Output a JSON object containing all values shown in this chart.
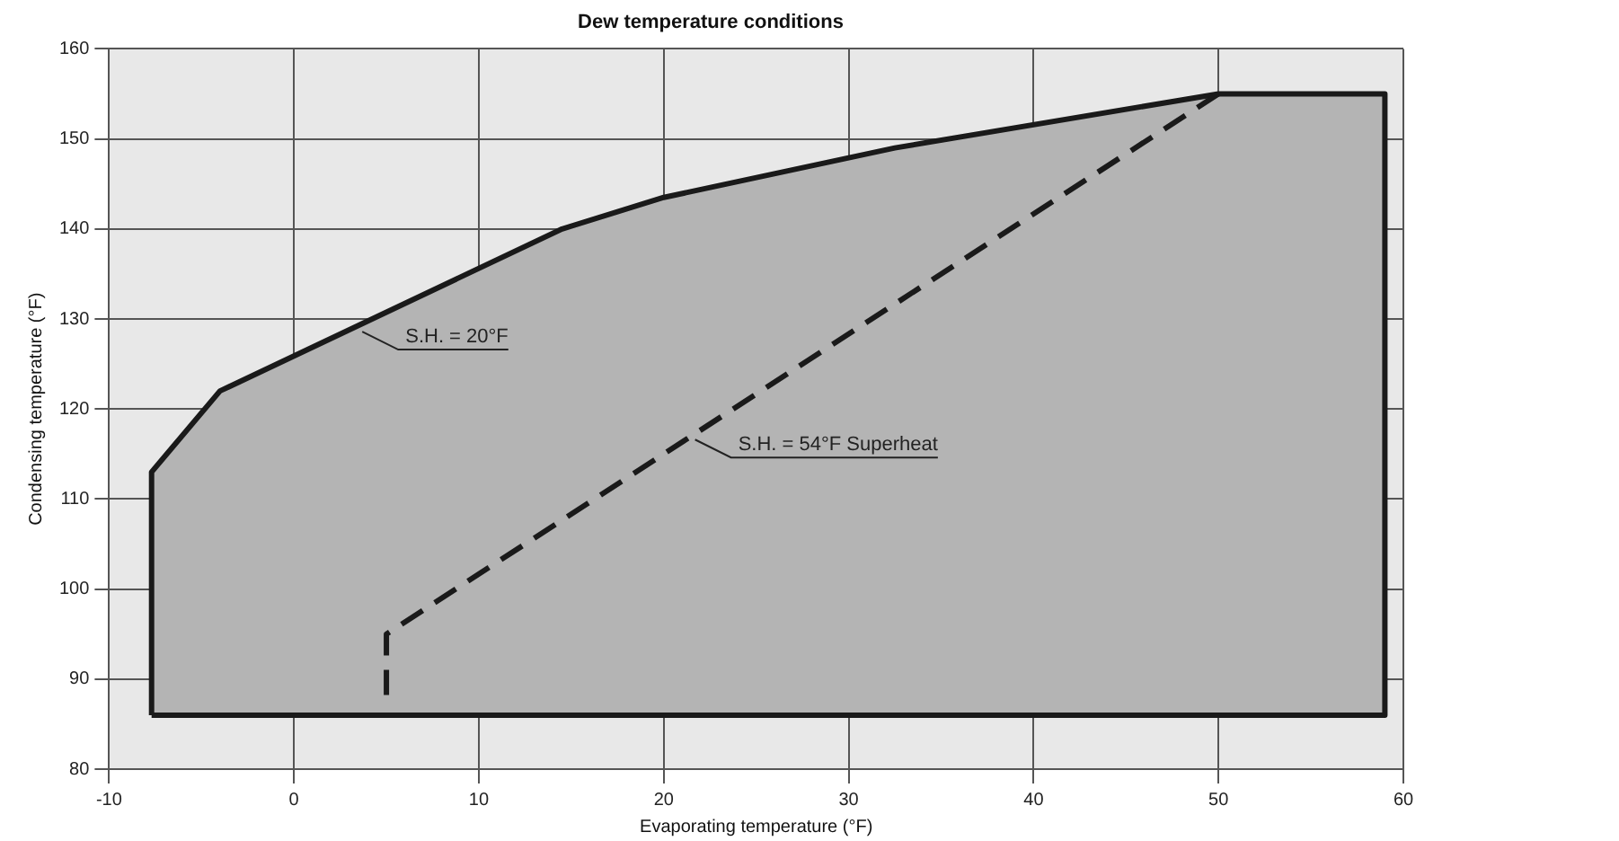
{
  "chart_data": {
    "type": "area",
    "title": "Dew temperature conditions",
    "xlabel": "Evaporating temperature (°F)",
    "ylabel": "Condensing temperature (°F)",
    "xlim": [
      -10,
      60
    ],
    "xticks": [
      -10,
      0,
      10,
      20,
      30,
      40,
      50,
      60
    ],
    "ylim": [
      80,
      160
    ],
    "yticks": [
      80,
      90,
      100,
      110,
      120,
      130,
      140,
      150,
      160
    ],
    "grid": true,
    "legend": false,
    "series": [
      {
        "color": "#b4b4b4",
        "x": [
          -7.7,
          -7.7,
          -4,
          14.5,
          20,
          32.5,
          50,
          59,
          59,
          -7.7
        ],
        "values": [
          86,
          113,
          122,
          140,
          143.5,
          149,
          155,
          155,
          86,
          86
        ]
      },
      {
        "type": "line",
        "line_style": "dashed",
        "color": "#1a1a1a",
        "x": [
          50,
          5,
          5
        ],
        "values": [
          155,
          95,
          88
        ]
      }
    ],
    "annotations": [
      {
        "text": "S.H. = 20°F",
        "x": 3.5,
        "y": 129
      },
      {
        "text": "S.H. = 54°F Superheat",
        "x": 21.5,
        "y": 117
      }
    ]
  }
}
